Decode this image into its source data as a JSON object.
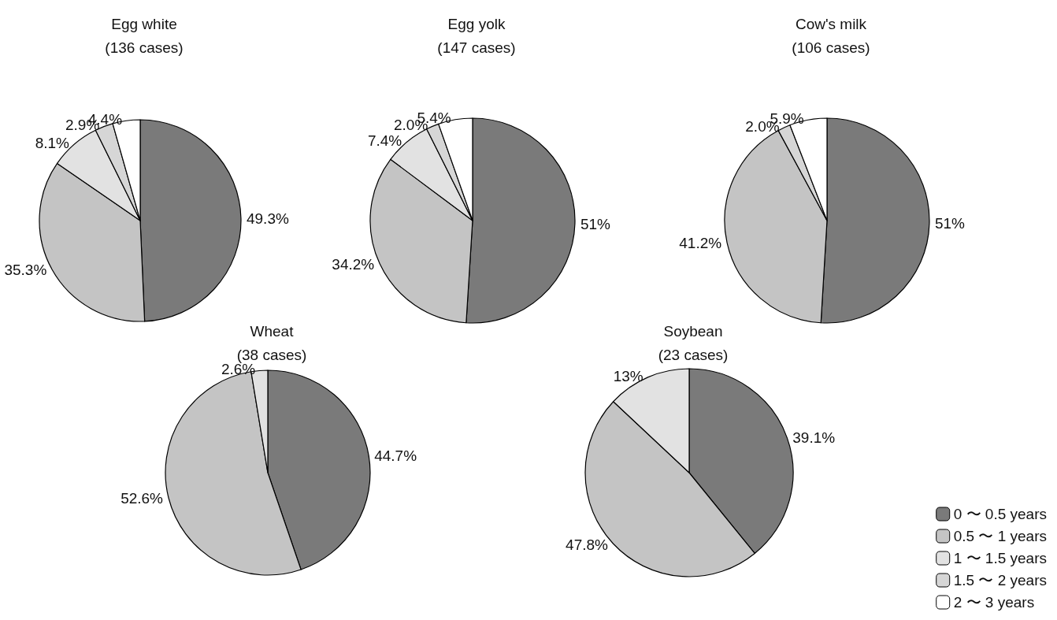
{
  "chart_data": [
    {
      "type": "pie",
      "title": "Egg white\n(136 cases)",
      "categories": [
        null,
        null,
        null,
        null,
        null
      ],
      "values": [
        49.3,
        35.3,
        8.1,
        2.9,
        4.4
      ],
      "value_labels": [
        "49.3%",
        "35.3%",
        "8.1%",
        "2.9%",
        "4.4%"
      ],
      "colors": [
        "#7a7a7a",
        "#c4c4c4",
        "#e2e2e2",
        "#d6d6d6",
        "#ffffff"
      ],
      "legend": false
    },
    {
      "type": "pie",
      "title": "Egg yolk\n(147 cases)",
      "categories": [
        null,
        null,
        null,
        null,
        null
      ],
      "values": [
        51,
        34.2,
        7.4,
        2.0,
        5.4
      ],
      "value_labels": [
        "51%",
        "34.2%",
        "7.4%",
        "2.0%",
        "5.4%"
      ],
      "colors": [
        "#7a7a7a",
        "#c4c4c4",
        "#e2e2e2",
        "#d6d6d6",
        "#ffffff"
      ],
      "legend": false
    },
    {
      "type": "pie",
      "title": "Cow's milk\n(106 cases)",
      "categories": [
        null,
        null,
        null,
        null,
        null
      ],
      "values": [
        51,
        41.2,
        0,
        2.0,
        5.9
      ],
      "value_labels": [
        "51%",
        "41.2%",
        null,
        "2.0%",
        "5.9%"
      ],
      "colors": [
        "#7a7a7a",
        "#c4c4c4",
        "#e2e2e2",
        "#d6d6d6",
        "#ffffff"
      ],
      "legend": false
    },
    {
      "type": "pie",
      "title": "Wheat\n(38 cases)",
      "categories": [
        null,
        null,
        null,
        null,
        null
      ],
      "values": [
        44.7,
        52.6,
        2.6,
        0,
        0
      ],
      "value_labels": [
        "44.7%",
        "52.6%",
        "2.6%",
        null,
        null
      ],
      "colors": [
        "#7a7a7a",
        "#c4c4c4",
        "#e2e2e2",
        "#d6d6d6",
        "#ffffff"
      ],
      "legend": false
    },
    {
      "type": "pie",
      "title": "Soybean\n(23 cases)",
      "categories": [
        "0 〜 0.5 years",
        "0.5 〜 1 years",
        "1 〜 1.5 years",
        "1.5 〜 2 years",
        "2 〜 3 years"
      ],
      "values": [
        39.1,
        47.8,
        13,
        0,
        0
      ],
      "value_labels": [
        "39.1%",
        "47.8%",
        "13%",
        null,
        null
      ],
      "colors": [
        "#7a7a7a",
        "#c4c4c4",
        "#e2e2e2",
        "#d6d6d6",
        "#ffffff"
      ],
      "legend": "bottom right"
    }
  ]
}
